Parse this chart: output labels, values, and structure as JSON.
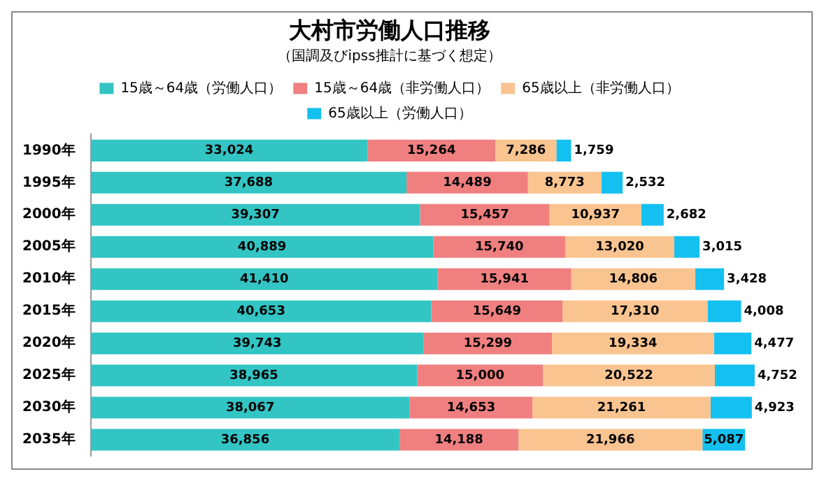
{
  "chart_data": {
    "type": "bar",
    "orientation": "horizontal",
    "stacked": true,
    "title": "大村市労働人口推移",
    "subtitle": "（国調及びipss推計に基づく想定）",
    "categories": [
      "1990年",
      "1995年",
      "2000年",
      "2005年",
      "2010年",
      "2015年",
      "2020年",
      "2025年",
      "2030年",
      "2035年"
    ],
    "series": [
      {
        "name": "15歳～64歳（労働人口）",
        "color": "#33c4c4",
        "values": [
          33024,
          37688,
          39307,
          40889,
          41410,
          40653,
          39743,
          38965,
          38067,
          36856
        ],
        "value_labels": [
          "33,024",
          "37,688",
          "39,307",
          "40,889",
          "41,410",
          "40,653",
          "39,743",
          "38,965",
          "38,067",
          "36,856"
        ]
      },
      {
        "name": "15歳～64歳（非労働人口）",
        "color": "#f08080",
        "values": [
          15264,
          14489,
          15457,
          15740,
          15941,
          15649,
          15299,
          15000,
          14653,
          14188
        ],
        "value_labels": [
          "15,264",
          "14,489",
          "15,457",
          "15,740",
          "15,941",
          "15,649",
          "15,299",
          "15,000",
          "14,653",
          "14,188"
        ]
      },
      {
        "name": "65歳以上（非労働人口）",
        "color": "#f9c490",
        "values": [
          7286,
          8773,
          10937,
          13020,
          14806,
          17310,
          19334,
          20522,
          21261,
          21966
        ],
        "value_labels": [
          "7,286",
          "8,773",
          "10,937",
          "13,020",
          "14,806",
          "17,310",
          "19,334",
          "20,522",
          "21,261",
          "21,966"
        ]
      },
      {
        "name": "65歳以上（労働人口）",
        "color": "#14c0f0",
        "values": [
          1759,
          2532,
          2682,
          3015,
          3428,
          4008,
          4477,
          4752,
          4923,
          5087
        ],
        "value_labels": [
          "1,759",
          "2,532",
          "2,682",
          "3,015",
          "3,428",
          "4,008",
          "4,477",
          "4,752",
          "4,923",
          "5,087"
        ]
      }
    ],
    "legend": "top"
  }
}
